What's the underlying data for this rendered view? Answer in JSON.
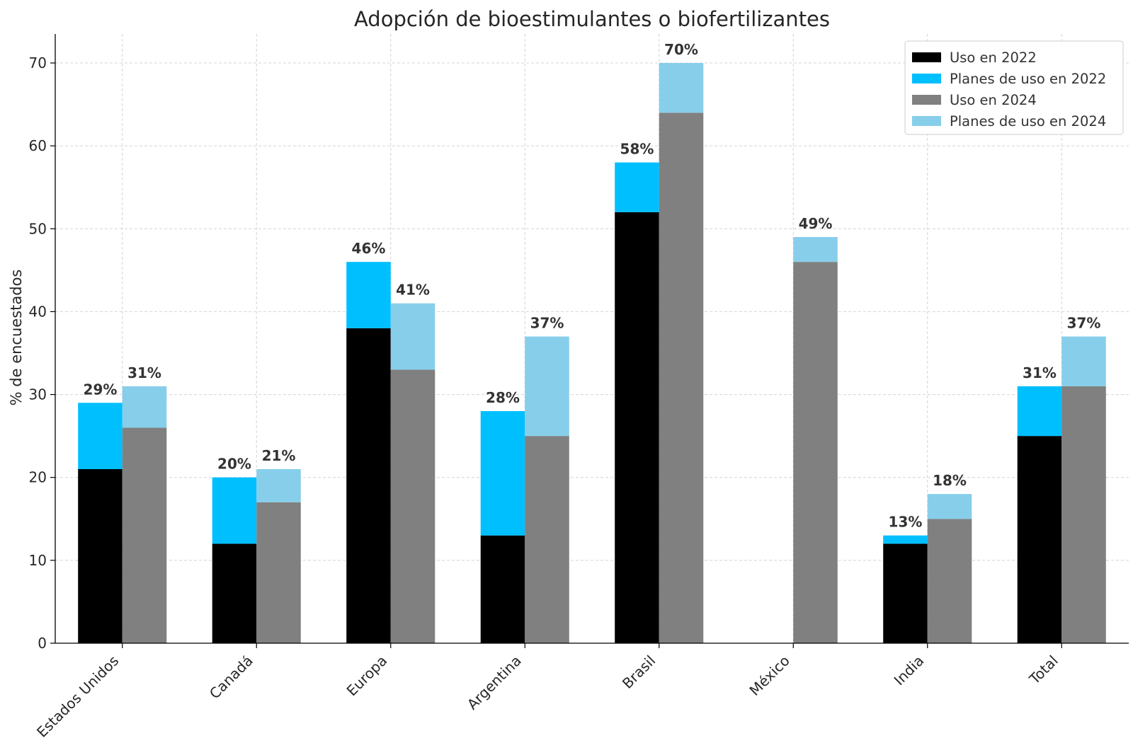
{
  "chart_data": {
    "type": "bar",
    "stacked": true,
    "title": "Adopción de bioestimulantes o biofertilizantes",
    "xlabel": "",
    "ylabel": "% de encuestados",
    "ylim": [
      0,
      73.5
    ],
    "yticks": [
      0,
      10,
      20,
      30,
      40,
      50,
      60,
      70
    ],
    "grid": true,
    "legend_position": "top-right",
    "categories": [
      "Estados Unidos",
      "Canadá",
      "Europa",
      "Argentina",
      "Brasil",
      "México",
      "India",
      "Total"
    ],
    "groups": [
      {
        "slot": "left",
        "total_labels": [
          "29%",
          "20%",
          "46%",
          "28%",
          "58%",
          "",
          "13%",
          "31%"
        ],
        "segments": [
          {
            "name": "Uso en 2022",
            "color": "#000000",
            "values": [
              21,
              12,
              38,
              13,
              52,
              null,
              12,
              25
            ]
          },
          {
            "name": "Planes de uso en 2022",
            "color": "#00bfff",
            "values": [
              8,
              8,
              8,
              15,
              6,
              null,
              1,
              6
            ]
          }
        ]
      },
      {
        "slot": "right",
        "total_labels": [
          "31%",
          "21%",
          "41%",
          "37%",
          "70%",
          "49%",
          "18%",
          "37%"
        ],
        "segments": [
          {
            "name": "Uso en 2024",
            "color": "#808080",
            "values": [
              26,
              17,
              33,
              25,
              64,
              46,
              15,
              31
            ]
          },
          {
            "name": "Planes de uso en 2024",
            "color": "#87ceeb",
            "values": [
              5,
              4,
              8,
              12,
              6,
              3,
              3,
              6
            ]
          }
        ]
      }
    ],
    "legend": [
      {
        "label": "Uso en 2022",
        "color": "#000000"
      },
      {
        "label": "Planes de uso en 2022",
        "color": "#00bfff"
      },
      {
        "label": "Uso en 2024",
        "color": "#808080"
      },
      {
        "label": "Planes de uso en 2024",
        "color": "#87ceeb"
      }
    ]
  }
}
